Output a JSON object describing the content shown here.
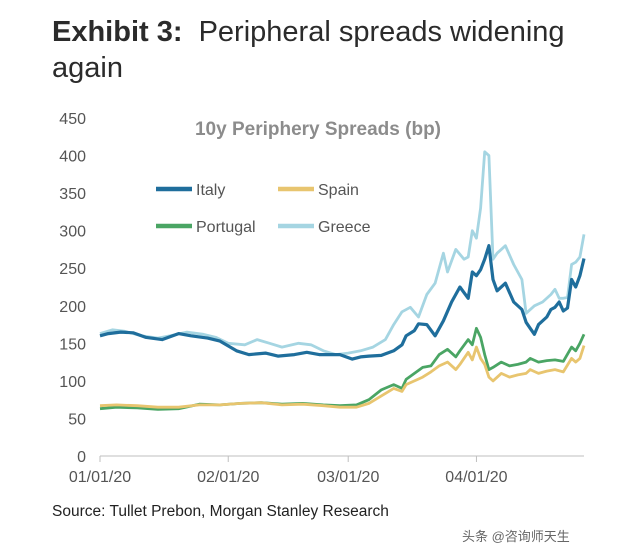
{
  "exhibit": {
    "label": "Exhibit 3:",
    "title": "Peripheral spreads widening again"
  },
  "source": "Source: Tullet Prebon, Morgan Stanley Research",
  "watermark": "头条 @咨询师天生",
  "chart_data": {
    "type": "line",
    "title": "10y Periphery Spreads (bp)",
    "xlabel": "",
    "ylabel": "",
    "ylim": [
      0,
      450
    ],
    "yticks": [
      0,
      50,
      100,
      150,
      200,
      250,
      300,
      350,
      400,
      450
    ],
    "xlim": [
      "2020-01-01",
      "2020-04-27"
    ],
    "xticks": [
      {
        "date": "2020-01-01",
        "label": "01/01/20"
      },
      {
        "date": "2020-02-01",
        "label": "02/01/20"
      },
      {
        "date": "2020-03-01",
        "label": "03/01/20"
      },
      {
        "date": "2020-04-01",
        "label": "04/01/20"
      }
    ],
    "grid": false,
    "legend_position": "upper-left",
    "series": [
      {
        "name": "Italy",
        "color": "#1f6e9c",
        "points": [
          [
            "2020-01-01",
            160
          ],
          [
            "2020-01-03",
            163
          ],
          [
            "2020-01-06",
            165
          ],
          [
            "2020-01-09",
            164
          ],
          [
            "2020-01-12",
            158
          ],
          [
            "2020-01-16",
            155
          ],
          [
            "2020-01-20",
            163
          ],
          [
            "2020-01-23",
            160
          ],
          [
            "2020-01-27",
            157
          ],
          [
            "2020-01-30",
            153
          ],
          [
            "2020-02-03",
            140
          ],
          [
            "2020-02-06",
            135
          ],
          [
            "2020-02-10",
            137
          ],
          [
            "2020-02-13",
            133
          ],
          [
            "2020-02-17",
            135
          ],
          [
            "2020-02-20",
            138
          ],
          [
            "2020-02-23",
            135
          ],
          [
            "2020-02-26",
            135
          ],
          [
            "2020-02-28",
            135
          ],
          [
            "2020-03-02",
            129
          ],
          [
            "2020-03-04",
            132
          ],
          [
            "2020-03-06",
            133
          ],
          [
            "2020-03-09",
            134
          ],
          [
            "2020-03-12",
            140
          ],
          [
            "2020-03-14",
            148
          ],
          [
            "2020-03-15",
            160
          ],
          [
            "2020-03-17",
            167
          ],
          [
            "2020-03-18",
            176
          ],
          [
            "2020-03-20",
            175
          ],
          [
            "2020-03-22",
            160
          ],
          [
            "2020-03-24",
            180
          ],
          [
            "2020-03-26",
            205
          ],
          [
            "2020-03-28",
            225
          ],
          [
            "2020-03-30",
            210
          ],
          [
            "2020-03-31",
            245
          ],
          [
            "2020-04-01",
            240
          ],
          [
            "2020-04-02",
            248
          ],
          [
            "2020-04-03",
            262
          ],
          [
            "2020-04-04",
            280
          ],
          [
            "2020-04-05",
            235
          ],
          [
            "2020-04-06",
            220
          ],
          [
            "2020-04-08",
            230
          ],
          [
            "2020-04-10",
            205
          ],
          [
            "2020-04-12",
            195
          ],
          [
            "2020-04-13",
            178
          ],
          [
            "2020-04-14",
            170
          ],
          [
            "2020-04-15",
            162
          ],
          [
            "2020-04-16",
            175
          ],
          [
            "2020-04-18",
            185
          ],
          [
            "2020-04-19",
            195
          ],
          [
            "2020-04-20",
            198
          ],
          [
            "2020-04-21",
            205
          ],
          [
            "2020-04-22",
            193
          ],
          [
            "2020-04-23",
            197
          ],
          [
            "2020-04-24",
            235
          ],
          [
            "2020-04-25",
            225
          ],
          [
            "2020-04-26",
            240
          ],
          [
            "2020-04-27",
            263
          ]
        ]
      },
      {
        "name": "Spain",
        "color": "#e8c56f",
        "points": [
          [
            "2020-01-01",
            67
          ],
          [
            "2020-01-05",
            68
          ],
          [
            "2020-01-10",
            67
          ],
          [
            "2020-01-15",
            65
          ],
          [
            "2020-01-20",
            65
          ],
          [
            "2020-01-25",
            68
          ],
          [
            "2020-01-30",
            68
          ],
          [
            "2020-02-04",
            70
          ],
          [
            "2020-02-09",
            71
          ],
          [
            "2020-02-14",
            68
          ],
          [
            "2020-02-19",
            69
          ],
          [
            "2020-02-24",
            67
          ],
          [
            "2020-02-28",
            65
          ],
          [
            "2020-03-03",
            65
          ],
          [
            "2020-03-06",
            70
          ],
          [
            "2020-03-09",
            80
          ],
          [
            "2020-03-12",
            90
          ],
          [
            "2020-03-14",
            86
          ],
          [
            "2020-03-15",
            95
          ],
          [
            "2020-03-17",
            100
          ],
          [
            "2020-03-19",
            105
          ],
          [
            "2020-03-21",
            112
          ],
          [
            "2020-03-23",
            120
          ],
          [
            "2020-03-25",
            125
          ],
          [
            "2020-03-27",
            115
          ],
          [
            "2020-03-28",
            122
          ],
          [
            "2020-03-30",
            138
          ],
          [
            "2020-03-31",
            128
          ],
          [
            "2020-04-01",
            145
          ],
          [
            "2020-04-02",
            130
          ],
          [
            "2020-04-03",
            122
          ],
          [
            "2020-04-04",
            105
          ],
          [
            "2020-04-05",
            100
          ],
          [
            "2020-04-07",
            110
          ],
          [
            "2020-04-09",
            105
          ],
          [
            "2020-04-11",
            108
          ],
          [
            "2020-04-13",
            110
          ],
          [
            "2020-04-14",
            115
          ],
          [
            "2020-04-16",
            110
          ],
          [
            "2020-04-18",
            113
          ],
          [
            "2020-04-20",
            115
          ],
          [
            "2020-04-22",
            112
          ],
          [
            "2020-04-24",
            130
          ],
          [
            "2020-04-25",
            125
          ],
          [
            "2020-04-26",
            130
          ],
          [
            "2020-04-27",
            147
          ]
        ]
      },
      {
        "name": "Portugal",
        "color": "#4aa564",
        "points": [
          [
            "2020-01-01",
            63
          ],
          [
            "2020-01-05",
            65
          ],
          [
            "2020-01-10",
            64
          ],
          [
            "2020-01-15",
            62
          ],
          [
            "2020-01-20",
            63
          ],
          [
            "2020-01-25",
            69
          ],
          [
            "2020-01-30",
            68
          ],
          [
            "2020-02-04",
            70
          ],
          [
            "2020-02-09",
            71
          ],
          [
            "2020-02-14",
            69
          ],
          [
            "2020-02-19",
            70
          ],
          [
            "2020-02-24",
            68
          ],
          [
            "2020-02-28",
            67
          ],
          [
            "2020-03-03",
            68
          ],
          [
            "2020-03-06",
            75
          ],
          [
            "2020-03-09",
            88
          ],
          [
            "2020-03-12",
            95
          ],
          [
            "2020-03-14",
            90
          ],
          [
            "2020-03-15",
            102
          ],
          [
            "2020-03-17",
            110
          ],
          [
            "2020-03-19",
            118
          ],
          [
            "2020-03-21",
            120
          ],
          [
            "2020-03-23",
            135
          ],
          [
            "2020-03-25",
            142
          ],
          [
            "2020-03-27",
            132
          ],
          [
            "2020-03-28",
            140
          ],
          [
            "2020-03-30",
            155
          ],
          [
            "2020-03-31",
            148
          ],
          [
            "2020-04-01",
            170
          ],
          [
            "2020-04-02",
            158
          ],
          [
            "2020-04-03",
            135
          ],
          [
            "2020-04-04",
            115
          ],
          [
            "2020-04-05",
            118
          ],
          [
            "2020-04-07",
            125
          ],
          [
            "2020-04-09",
            120
          ],
          [
            "2020-04-11",
            122
          ],
          [
            "2020-04-13",
            125
          ],
          [
            "2020-04-14",
            130
          ],
          [
            "2020-04-16",
            125
          ],
          [
            "2020-04-18",
            127
          ],
          [
            "2020-04-20",
            128
          ],
          [
            "2020-04-22",
            126
          ],
          [
            "2020-04-24",
            145
          ],
          [
            "2020-04-25",
            140
          ],
          [
            "2020-04-26",
            150
          ],
          [
            "2020-04-27",
            162
          ]
        ]
      },
      {
        "name": "Greece",
        "color": "#a5d5e2",
        "points": [
          [
            "2020-01-01",
            163
          ],
          [
            "2020-01-04",
            168
          ],
          [
            "2020-01-07",
            166
          ],
          [
            "2020-01-11",
            160
          ],
          [
            "2020-01-15",
            157
          ],
          [
            "2020-01-18",
            160
          ],
          [
            "2020-01-22",
            165
          ],
          [
            "2020-01-26",
            162
          ],
          [
            "2020-01-29",
            158
          ],
          [
            "2020-02-01",
            150
          ],
          [
            "2020-02-05",
            148
          ],
          [
            "2020-02-08",
            155
          ],
          [
            "2020-02-11",
            150
          ],
          [
            "2020-02-14",
            145
          ],
          [
            "2020-02-18",
            150
          ],
          [
            "2020-02-21",
            148
          ],
          [
            "2020-02-24",
            140
          ],
          [
            "2020-02-27",
            135
          ],
          [
            "2020-03-01",
            137
          ],
          [
            "2020-03-04",
            140
          ],
          [
            "2020-03-07",
            145
          ],
          [
            "2020-03-10",
            155
          ],
          [
            "2020-03-12",
            175
          ],
          [
            "2020-03-14",
            192
          ],
          [
            "2020-03-16",
            198
          ],
          [
            "2020-03-18",
            185
          ],
          [
            "2020-03-20",
            215
          ],
          [
            "2020-03-22",
            230
          ],
          [
            "2020-03-24",
            270
          ],
          [
            "2020-03-25",
            245
          ],
          [
            "2020-03-27",
            275
          ],
          [
            "2020-03-29",
            262
          ],
          [
            "2020-03-30",
            265
          ],
          [
            "2020-03-31",
            300
          ],
          [
            "2020-04-01",
            290
          ],
          [
            "2020-04-02",
            330
          ],
          [
            "2020-04-03",
            405
          ],
          [
            "2020-04-04",
            400
          ],
          [
            "2020-04-05",
            262
          ],
          [
            "2020-04-06",
            270
          ],
          [
            "2020-04-07",
            275
          ],
          [
            "2020-04-08",
            280
          ],
          [
            "2020-04-10",
            255
          ],
          [
            "2020-04-12",
            235
          ],
          [
            "2020-04-13",
            190
          ],
          [
            "2020-04-15",
            200
          ],
          [
            "2020-04-17",
            205
          ],
          [
            "2020-04-19",
            215
          ],
          [
            "2020-04-20",
            222
          ],
          [
            "2020-04-21",
            210
          ],
          [
            "2020-04-22",
            210
          ],
          [
            "2020-04-23",
            211
          ],
          [
            "2020-04-24",
            255
          ],
          [
            "2020-04-25",
            258
          ],
          [
            "2020-04-26",
            265
          ],
          [
            "2020-04-27",
            295
          ]
        ]
      }
    ]
  }
}
